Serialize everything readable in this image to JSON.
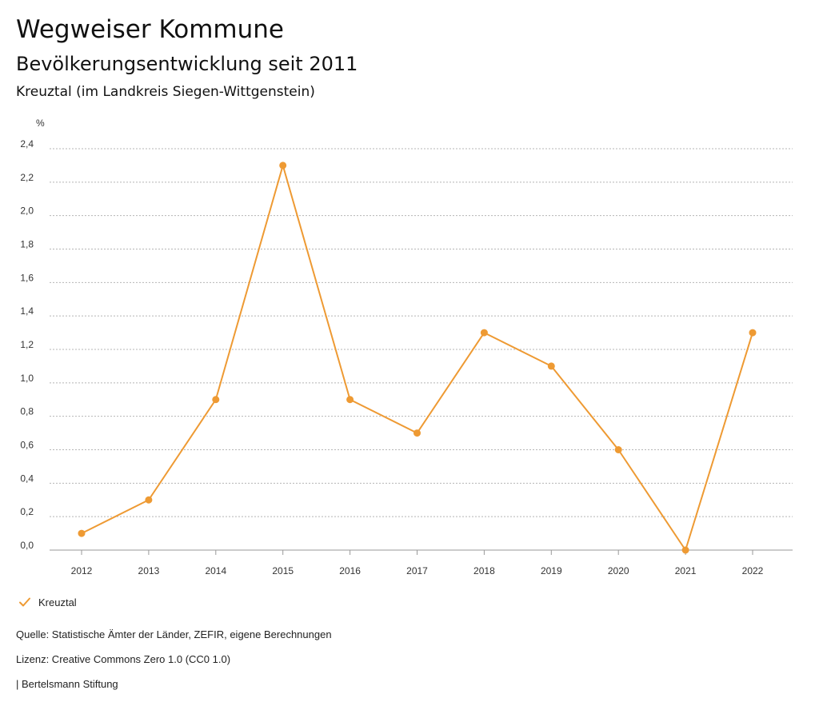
{
  "header": {
    "title": "Wegweiser Kommune",
    "subtitle": "Bevölkerungsentwicklung seit 2011",
    "region": "Kreuztal (im Landkreis Siegen-Wittgenstein)"
  },
  "chart_data": {
    "type": "line",
    "title": "Bevölkerungsentwicklung seit 2011",
    "ylabel": "%",
    "xlabel": "",
    "categories": [
      "2012",
      "2013",
      "2014",
      "2015",
      "2016",
      "2017",
      "2018",
      "2019",
      "2020",
      "2021",
      "2022"
    ],
    "series": [
      {
        "name": "Kreuztal",
        "color": "#ee9a33",
        "values": [
          0.1,
          0.3,
          0.9,
          2.3,
          0.9,
          0.7,
          1.3,
          1.1,
          0.6,
          0.0,
          1.3
        ]
      }
    ],
    "ylim": [
      0,
      2.4
    ],
    "yticks": [
      "0,0",
      "0,2",
      "0,4",
      "0,6",
      "0,8",
      "1,0",
      "1,2",
      "1,4",
      "1,6",
      "1,8",
      "2,0",
      "2,2",
      "2,4"
    ],
    "grid": true,
    "legend": "bottom-left"
  },
  "footer": {
    "source": "Quelle: Statistische Ämter der Länder, ZEFIR, eigene Berechnungen",
    "license": "Lizenz: Creative Commons Zero 1.0 (CC0 1.0)",
    "publisher": "| Bertelsmann Stiftung"
  }
}
